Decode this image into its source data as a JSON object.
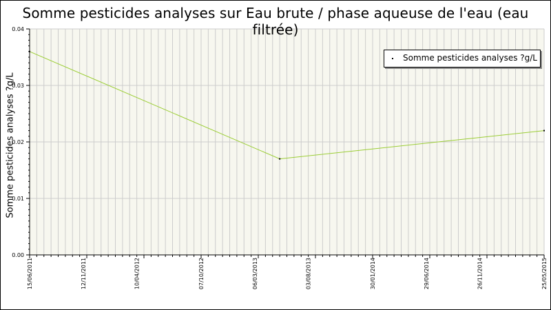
{
  "chart_data": {
    "type": "line",
    "title": "Somme pesticides analyses sur Eau brute / phase aqueuse de l'eau (eau filtrée)",
    "ylabel": "Somme pesticides analyses ?g/L",
    "xlabel": "",
    "x_type": "date",
    "xlim": [
      "2011-06-15",
      "2015-05-25"
    ],
    "ylim": [
      0,
      0.04
    ],
    "y_ticks": [
      "0.00",
      "0.01",
      "0.02",
      "0.03",
      "0.04"
    ],
    "x_ticks": [
      {
        "date": "2011-06-15",
        "label": "15/06/2011"
      },
      {
        "date": "2011-11-12",
        "label": "12/11/2011"
      },
      {
        "date": "2012-04-10",
        "label": "10/04/2012"
      },
      {
        "date": "2012-10-07",
        "label": "07/10/2012"
      },
      {
        "date": "2013-03-06",
        "label": "06/03/2013"
      },
      {
        "date": "2013-08-03",
        "label": "03/08/2013"
      },
      {
        "date": "2014-01-30",
        "label": "30/01/2014"
      },
      {
        "date": "2014-06-29",
        "label": "29/06/2014"
      },
      {
        "date": "2014-11-26",
        "label": "26/11/2014"
      },
      {
        "date": "2015-05-25",
        "label": "25/05/2015"
      }
    ],
    "grid": true,
    "legend_position": "top-right",
    "series": [
      {
        "name": "Somme pesticides analyses ?g/L",
        "color": "#9acd32",
        "points": [
          {
            "x": "2011-06-15",
            "y": 0.036
          },
          {
            "x": "2013-05-15",
            "y": 0.017
          },
          {
            "x": "2015-05-25",
            "y": 0.022
          }
        ]
      }
    ],
    "colors": {
      "plot_background": "#f7f7ef",
      "grid": "#cccccc",
      "axis": "#000000",
      "marker": "#000000"
    }
  }
}
